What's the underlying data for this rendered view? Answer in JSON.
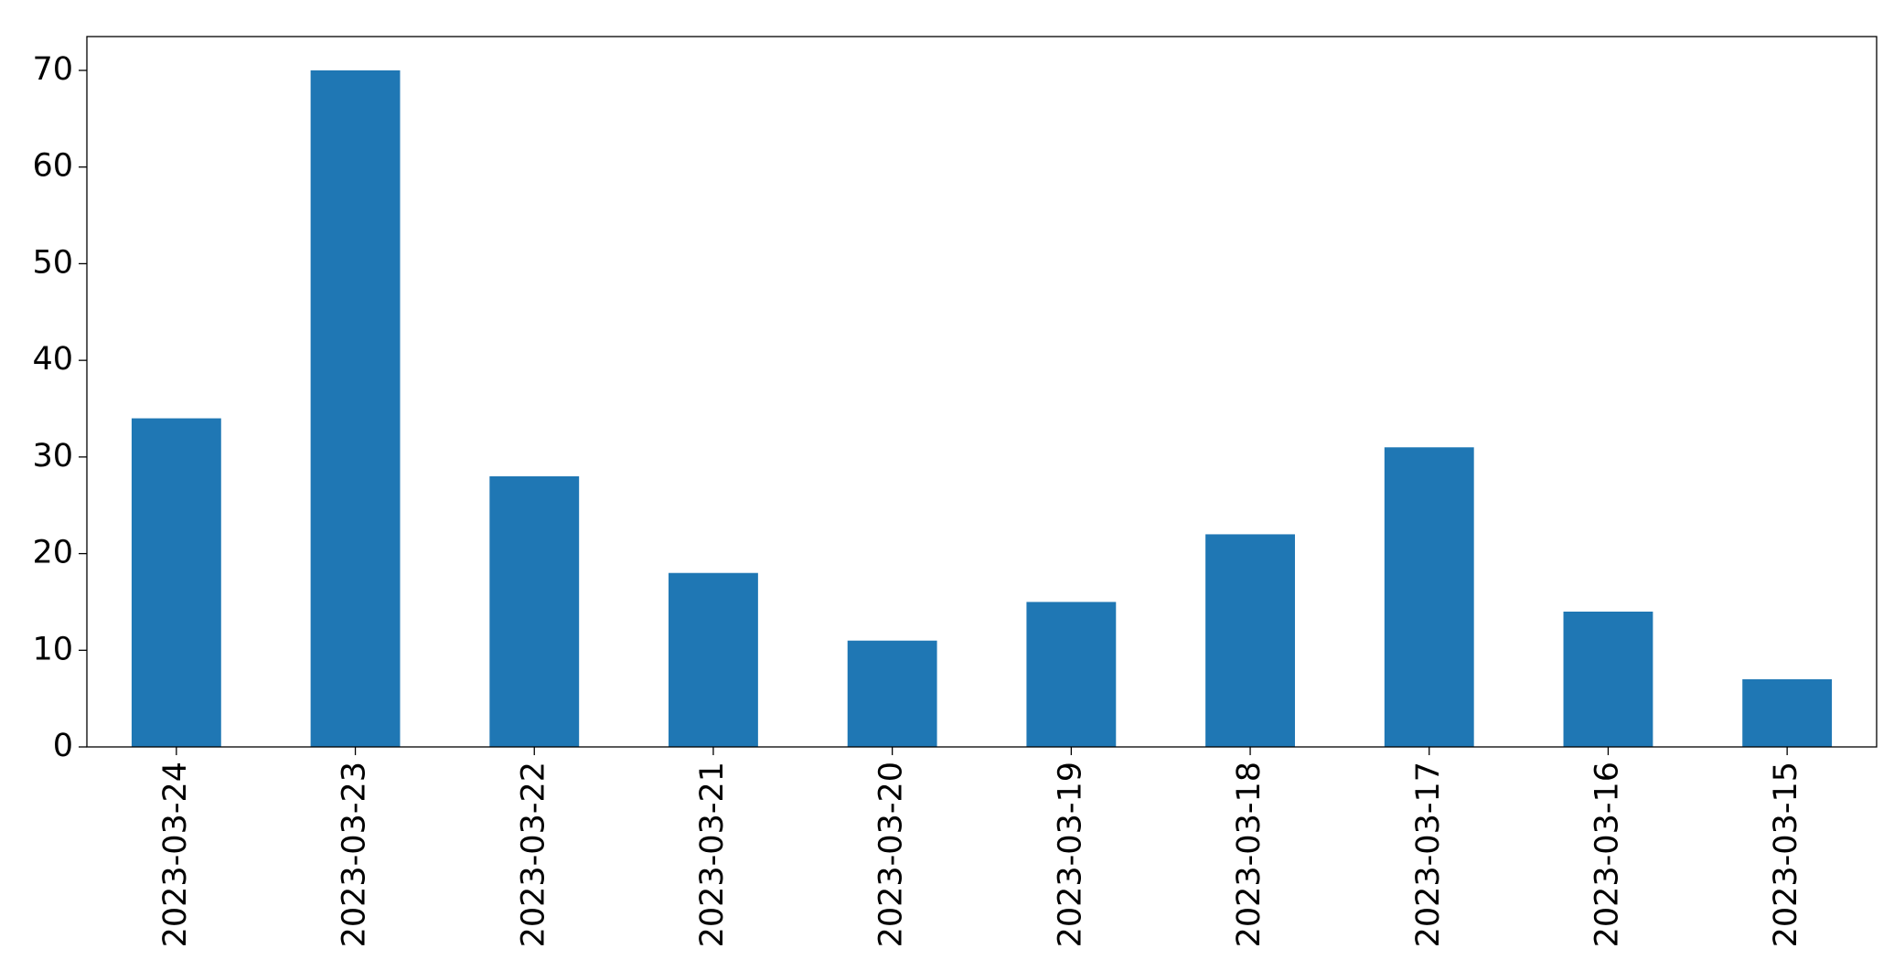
{
  "chart_data": {
    "type": "bar",
    "categories": [
      "2023-03-24",
      "2023-03-23",
      "2023-03-22",
      "2023-03-21",
      "2023-03-20",
      "2023-03-19",
      "2023-03-18",
      "2023-03-17",
      "2023-03-16",
      "2023-03-15"
    ],
    "values": [
      34,
      70,
      28,
      18,
      11,
      15,
      22,
      31,
      14,
      7
    ],
    "color": "#1f77b4",
    "ylim": [
      0,
      73.5
    ],
    "yticks": [
      0,
      10,
      20,
      30,
      40,
      50,
      60,
      70
    ],
    "grid": false
  }
}
